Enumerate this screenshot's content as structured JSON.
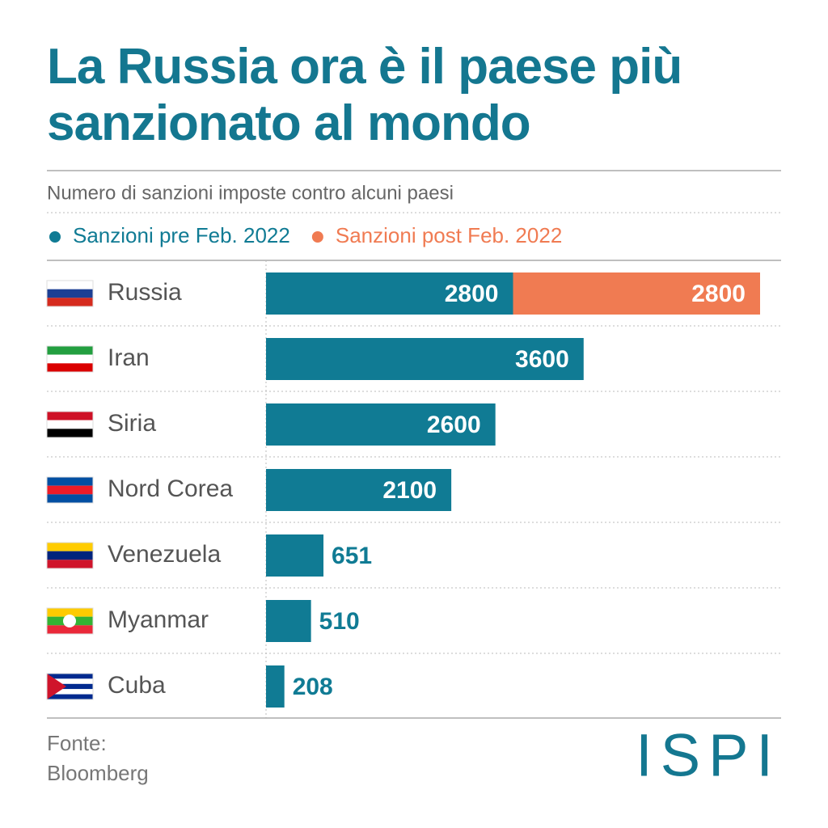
{
  "chart_data": {
    "type": "stacked-bar-horizontal",
    "title": "La Russia ora è il paese più sanzionato al mondo",
    "subtitle": "Numero di sanzioni imposte contro alcuni paesi",
    "categories": [
      "Russia",
      "Iran",
      "Siria",
      "Nord Corea",
      "Venezuela",
      "Myanmar",
      "Cuba"
    ],
    "series": [
      {
        "name": "Sanzioni pre Feb. 2022",
        "color": "#107b94",
        "values": [
          2800,
          3600,
          2600,
          2100,
          651,
          510,
          208
        ]
      },
      {
        "name": "Sanzioni post Feb. 2022",
        "color": "#f07b52",
        "values": [
          2800,
          null,
          null,
          null,
          null,
          null,
          null
        ]
      }
    ],
    "source_label": "Fonte:",
    "source": "Bloomberg",
    "logo": "ISPI"
  }
}
